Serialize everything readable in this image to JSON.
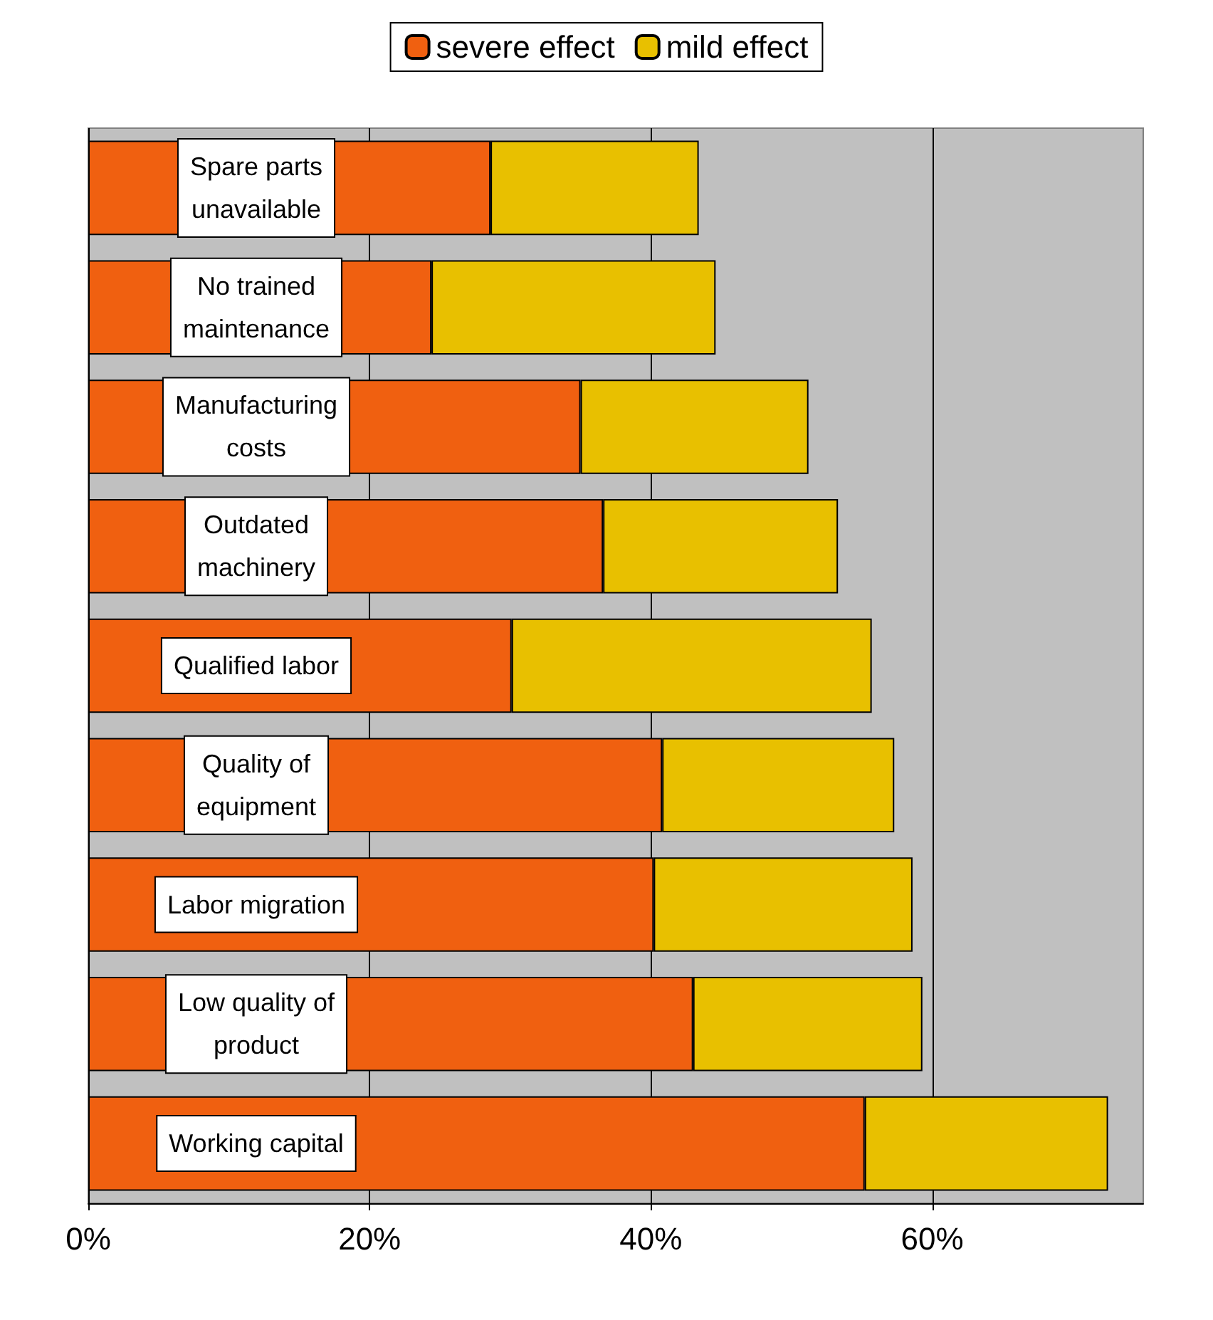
{
  "chart_data": {
    "type": "bar",
    "orientation": "horizontal",
    "stacked": true,
    "categories": [
      "Spare parts\nunavailable",
      "No trained\nmaintenance",
      "Manufacturing\ncosts",
      "Outdated\nmachinery",
      "Qualified labor",
      "Quality of\nequipment",
      "Labor migration",
      "Low quality of\nproduct",
      "Working capital"
    ],
    "series": [
      {
        "name": "severe effect",
        "color": "#f06010",
        "values": [
          28.6,
          24.4,
          35.0,
          36.6,
          30.1,
          40.8,
          40.2,
          43.0,
          55.2
        ]
      },
      {
        "name": "mild effect",
        "color": "#e8c000",
        "values": [
          14.8,
          20.2,
          16.2,
          16.7,
          25.6,
          16.5,
          18.4,
          16.3,
          17.3
        ]
      }
    ],
    "xlim": [
      0,
      75
    ],
    "xticks": [
      {
        "value": 0,
        "label": "0%"
      },
      {
        "value": 20,
        "label": "20%"
      },
      {
        "value": 40,
        "label": "40%"
      },
      {
        "value": 60,
        "label": "60%"
      }
    ],
    "grid": "x",
    "legend": "top"
  }
}
